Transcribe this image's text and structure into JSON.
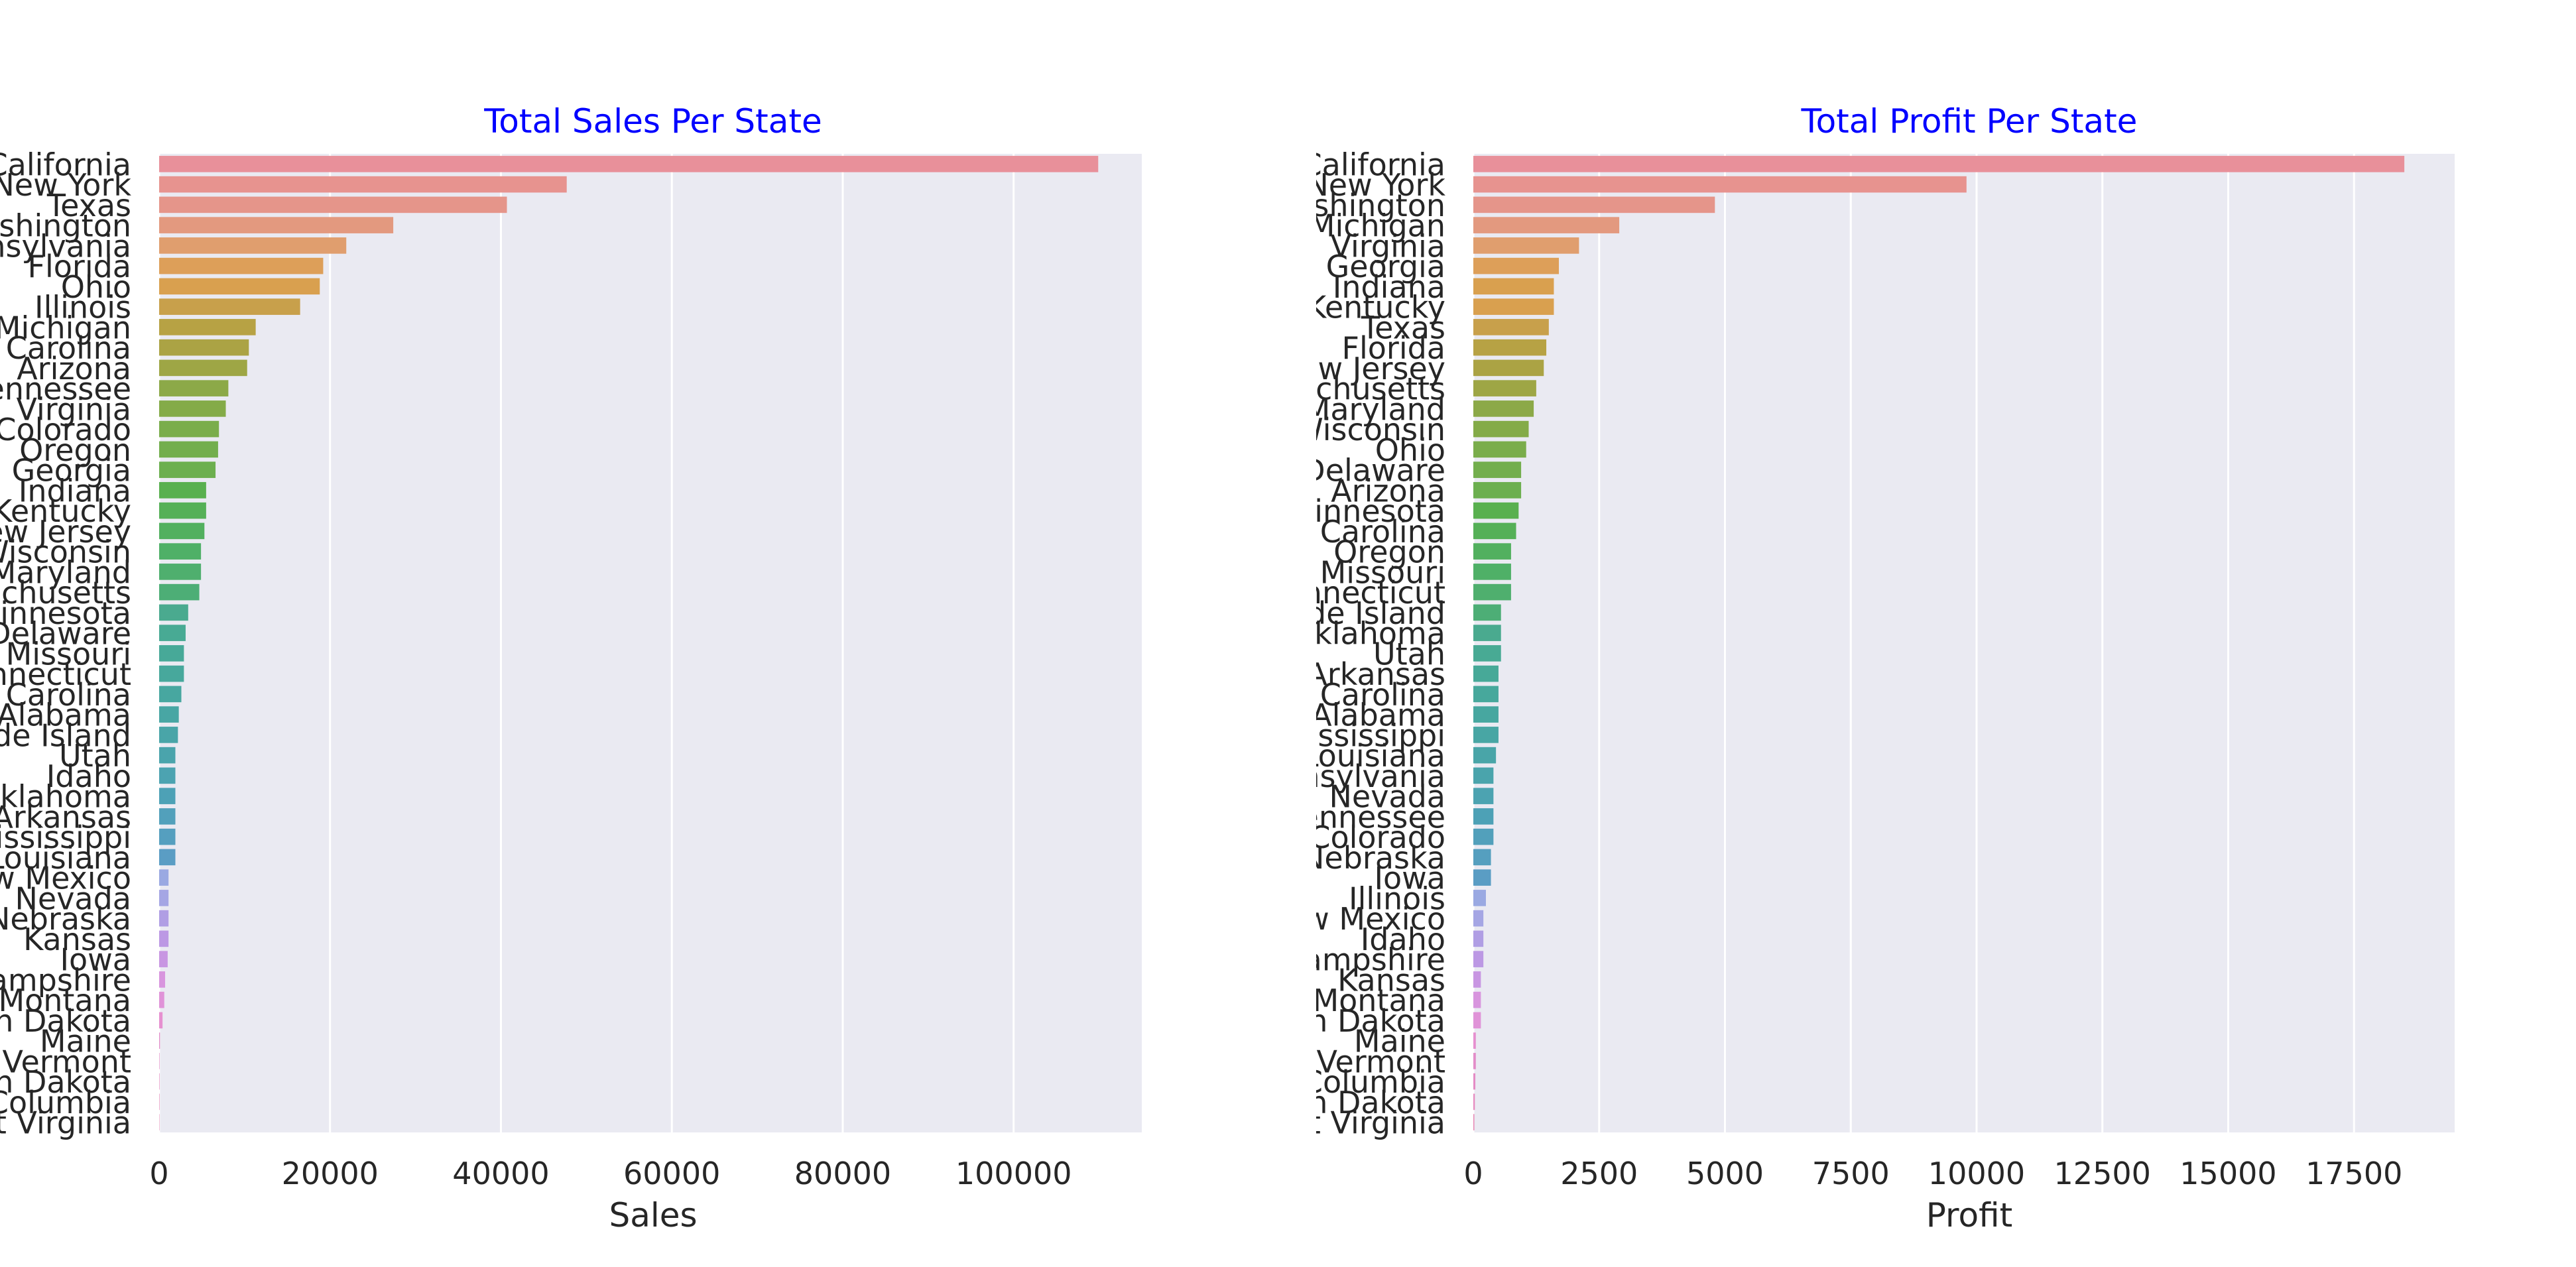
{
  "chart_data": [
    {
      "type": "bar",
      "orientation": "horizontal",
      "title": "Total Sales Per State",
      "xlabel": "Sales",
      "ylabel": "",
      "xlim": [
        0,
        115000
      ],
      "xticks": [
        0,
        20000,
        40000,
        60000,
        80000,
        100000
      ],
      "grid": true,
      "categories": [
        "California",
        "New York",
        "Texas",
        "Washington",
        "Pennsylvania",
        "Florida",
        "Ohio",
        "Illinois",
        "Michigan",
        "North Carolina",
        "Arizona",
        "Tennessee",
        "Virginia",
        "Colorado",
        "Oregon",
        "Georgia",
        "Indiana",
        "Kentucky",
        "New Jersey",
        "Wisconsin",
        "Maryland",
        "Massachusetts",
        "Minnesota",
        "Delaware",
        "Missouri",
        "Connecticut",
        "South Carolina",
        "Alabama",
        "Rhode Island",
        "Utah",
        "Idaho",
        "Oklahoma",
        "Arkansas",
        "Mississippi",
        "Louisiana",
        "New Mexico",
        "Nevada",
        "Nebraska",
        "Kansas",
        "Iowa",
        "New Hampshire",
        "Montana",
        "South Dakota",
        "Maine",
        "Vermont",
        "North Dakota",
        "District of Columbia",
        "West Virginia"
      ],
      "values": [
        109900,
        47700,
        40700,
        27400,
        21900,
        19200,
        18800,
        16500,
        11300,
        10500,
        10300,
        8100,
        7800,
        7000,
        6900,
        6600,
        5500,
        5500,
        5300,
        4900,
        4900,
        4700,
        3400,
        3100,
        2900,
        2900,
        2600,
        2300,
        2200,
        1900,
        1900,
        1900,
        1900,
        1900,
        1900,
        1100,
        1100,
        1100,
        1100,
        1000,
        700,
        600,
        400,
        100,
        50,
        50,
        50,
        30
      ],
      "colors": [
        "#e8909a",
        "#e7938f",
        "#e5958a",
        "#e3997f",
        "#e09e6e",
        "#dd9f59",
        "#d9a04f",
        "#c8a04b",
        "#b7a244",
        "#aba344",
        "#9ea645",
        "#8ca948",
        "#84ab48",
        "#7aad4b",
        "#73ae4d",
        "#6caf4f",
        "#59b04f",
        "#55b057",
        "#52b05f",
        "#4fb067",
        "#4faf6e",
        "#4dae76",
        "#4aaa8f",
        "#48aa94",
        "#47a998",
        "#47a89c",
        "#47a7a0",
        "#48a6a4",
        "#49a5a8",
        "#4aa4ac",
        "#4ca3b1",
        "#4da1b6",
        "#52a0bb",
        "#559fbf",
        "#5a9dc4",
        "#9aa9e2",
        "#a5a6e4",
        "#b09ee4",
        "#bc98e4",
        "#c896e2",
        "#d895de",
        "#e093d8",
        "#e690d0",
        "#e38dc9",
        "#e48cc5",
        "#e68bc0",
        "#e78aba",
        "#e889b5"
      ]
    },
    {
      "type": "bar",
      "orientation": "horizontal",
      "title": "Total Profit Per State",
      "xlabel": "Profit",
      "ylabel": "",
      "xlim": [
        0,
        19500
      ],
      "xticks": [
        0,
        2500,
        5000,
        7500,
        10000,
        12500,
        15000,
        17500
      ],
      "grid": true,
      "categories": [
        "California",
        "New York",
        "Washington",
        "Michigan",
        "Virginia",
        "Georgia",
        "Indiana",
        "Kentucky",
        "Texas",
        "Florida",
        "New Jersey",
        "Massachusetts",
        "Maryland",
        "Wisconsin",
        "Ohio",
        "Delaware",
        "Arizona",
        "Minnesota",
        "North Carolina",
        "Oregon",
        "Missouri",
        "Connecticut",
        "Rhode Island",
        "Oklahoma",
        "Utah",
        "Arkansas",
        "South Carolina",
        "Alabama",
        "Mississippi",
        "Louisiana",
        "Pennsylvania",
        "Nevada",
        "Tennessee",
        "Colorado",
        "Nebraska",
        "Iowa",
        "Illinois",
        "New Mexico",
        "Idaho",
        "New Hampshire",
        "Kansas",
        "Montana",
        "South Dakota",
        "Maine",
        "Vermont",
        "District of Columbia",
        "North Dakota",
        "West Virginia"
      ],
      "values": [
        18500,
        9800,
        4800,
        2900,
        2100,
        1700,
        1600,
        1600,
        1500,
        1450,
        1400,
        1250,
        1200,
        1100,
        1050,
        950,
        950,
        900,
        850,
        750,
        750,
        750,
        550,
        550,
        550,
        500,
        500,
        500,
        500,
        450,
        400,
        400,
        400,
        400,
        350,
        350,
        250,
        200,
        200,
        200,
        150,
        150,
        150,
        50,
        50,
        40,
        30,
        20
      ],
      "colors": [
        "#e8909a",
        "#e7938f",
        "#e5958a",
        "#e3997f",
        "#e09e6e",
        "#dd9f59",
        "#d9a04f",
        "#d9a04f",
        "#c8a04b",
        "#b7a244",
        "#aba344",
        "#9ea645",
        "#8ca948",
        "#84ab48",
        "#7aad4b",
        "#73ae4d",
        "#6caf4f",
        "#59b04f",
        "#55b057",
        "#52b05f",
        "#4fb067",
        "#4faf6e",
        "#4dae76",
        "#4aaa8f",
        "#48aa94",
        "#47a998",
        "#47a89c",
        "#47a7a0",
        "#48a6a4",
        "#49a5a8",
        "#4aa4ac",
        "#4ca3b1",
        "#4da1b6",
        "#52a0bb",
        "#559fbf",
        "#5a9dc4",
        "#9aa9e2",
        "#a5a6e4",
        "#b09ee4",
        "#bc98e4",
        "#c896e2",
        "#d895de",
        "#e093d8",
        "#e690d0",
        "#e38dc9",
        "#e48cc5",
        "#e68bc0",
        "#e889b5"
      ]
    }
  ]
}
